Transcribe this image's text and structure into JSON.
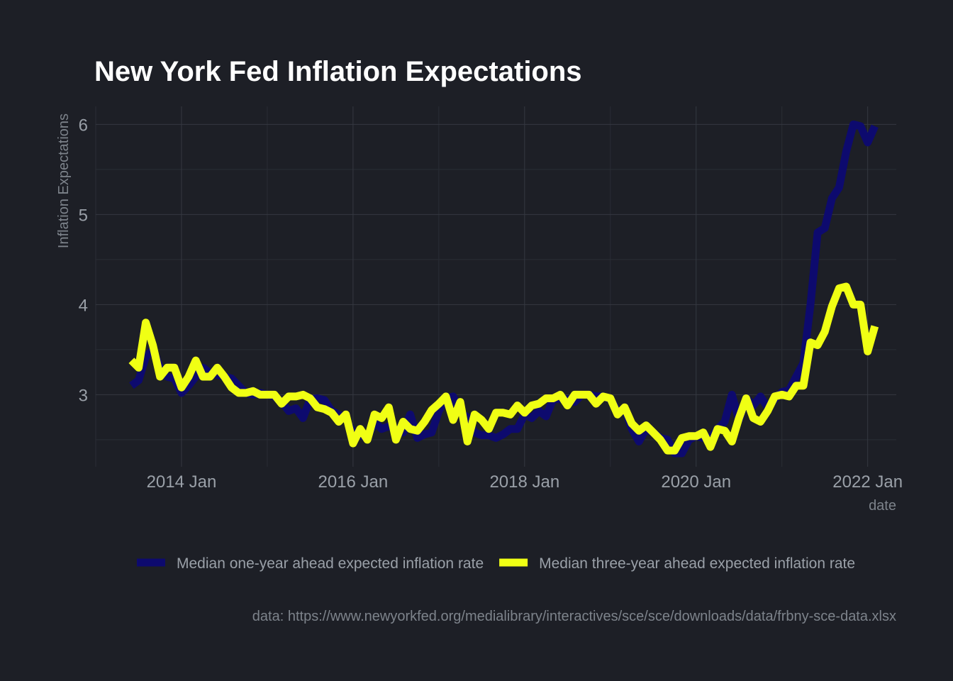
{
  "chart_data": {
    "type": "line",
    "title": "New York Fed Inflation Expectations",
    "xlabel": "date",
    "ylabel": "Inflation Expectations",
    "caption": "data: https://www.newyorkfed.org/medialibrary/interactives/sce/sce/downloads/data/frbny-sce-data.xlsx",
    "x_range": [
      "2013-01",
      "2022-05"
    ],
    "ylim": [
      2.2,
      6.2
    ],
    "x_ticks": [
      {
        "date": "2014-01",
        "label": "2014 Jan"
      },
      {
        "date": "2016-01",
        "label": "2016 Jan"
      },
      {
        "date": "2018-01",
        "label": "2018 Jan"
      },
      {
        "date": "2020-01",
        "label": "2020 Jan"
      },
      {
        "date": "2022-01",
        "label": "2022 Jan"
      }
    ],
    "y_ticks": [
      3,
      4,
      5,
      6
    ],
    "grid": true,
    "legend_position": "bottom",
    "series": [
      {
        "name": "Median one-year ahead expected inflation rate",
        "color": "#0d0a6e",
        "points": [
          [
            "2013-06",
            3.1
          ],
          [
            "2013-07",
            3.16
          ],
          [
            "2013-08",
            3.42
          ],
          [
            "2013-09",
            3.5
          ],
          [
            "2013-10",
            3.3
          ],
          [
            "2013-11",
            3.2
          ],
          [
            "2013-12",
            3.18
          ],
          [
            "2014-01",
            3.02
          ],
          [
            "2014-02",
            3.1
          ],
          [
            "2014-03",
            3.2
          ],
          [
            "2014-04",
            3.3
          ],
          [
            "2014-05",
            3.24
          ],
          [
            "2014-06",
            3.22
          ],
          [
            "2014-07",
            3.2
          ],
          [
            "2014-08",
            3.18
          ],
          [
            "2014-09",
            3.1
          ],
          [
            "2014-10",
            3.02
          ],
          [
            "2014-11",
            3.0
          ],
          [
            "2014-12",
            3.02
          ],
          [
            "2015-01",
            3.0
          ],
          [
            "2015-02",
            2.98
          ],
          [
            "2015-03",
            2.92
          ],
          [
            "2015-04",
            2.82
          ],
          [
            "2015-05",
            2.85
          ],
          [
            "2015-06",
            2.74
          ],
          [
            "2015-07",
            2.95
          ],
          [
            "2015-08",
            2.96
          ],
          [
            "2015-09",
            2.94
          ],
          [
            "2015-10",
            2.82
          ],
          [
            "2015-11",
            2.78
          ],
          [
            "2015-12",
            2.73
          ],
          [
            "2016-01",
            2.58
          ],
          [
            "2016-02",
            2.55
          ],
          [
            "2016-03",
            2.52
          ],
          [
            "2016-04",
            2.7
          ],
          [
            "2016-05",
            2.62
          ],
          [
            "2016-06",
            2.65
          ],
          [
            "2016-07",
            2.62
          ],
          [
            "2016-08",
            2.58
          ],
          [
            "2016-09",
            2.78
          ],
          [
            "2016-10",
            2.52
          ],
          [
            "2016-11",
            2.56
          ],
          [
            "2016-12",
            2.58
          ],
          [
            "2017-01",
            2.82
          ],
          [
            "2017-02",
            2.95
          ],
          [
            "2017-03",
            2.98
          ],
          [
            "2017-04",
            2.8
          ],
          [
            "2017-05",
            2.75
          ],
          [
            "2017-06",
            2.58
          ],
          [
            "2017-07",
            2.55
          ],
          [
            "2017-08",
            2.55
          ],
          [
            "2017-09",
            2.52
          ],
          [
            "2017-10",
            2.56
          ],
          [
            "2017-11",
            2.62
          ],
          [
            "2017-12",
            2.62
          ],
          [
            "2018-01",
            2.78
          ],
          [
            "2018-02",
            2.74
          ],
          [
            "2018-03",
            2.82
          ],
          [
            "2018-04",
            2.76
          ],
          [
            "2018-05",
            2.95
          ],
          [
            "2018-06",
            2.95
          ],
          [
            "2018-07",
            2.95
          ],
          [
            "2018-08",
            2.92
          ],
          [
            "2018-09",
            3.0
          ],
          [
            "2018-10",
            3.0
          ],
          [
            "2018-11",
            2.98
          ],
          [
            "2018-12",
            2.98
          ],
          [
            "2019-01",
            2.95
          ],
          [
            "2019-02",
            2.82
          ],
          [
            "2019-03",
            2.85
          ],
          [
            "2019-04",
            2.62
          ],
          [
            "2019-05",
            2.48
          ],
          [
            "2019-06",
            2.62
          ],
          [
            "2019-07",
            2.58
          ],
          [
            "2019-08",
            2.52
          ],
          [
            "2019-09",
            2.5
          ],
          [
            "2019-10",
            2.35
          ],
          [
            "2019-11",
            2.35
          ],
          [
            "2019-12",
            2.5
          ],
          [
            "2020-01",
            2.54
          ],
          [
            "2020-02",
            2.52
          ],
          [
            "2020-03",
            2.52
          ],
          [
            "2020-04",
            2.62
          ],
          [
            "2020-05",
            2.7
          ],
          [
            "2020-06",
            3.0
          ],
          [
            "2020-07",
            2.72
          ],
          [
            "2020-08",
            2.96
          ],
          [
            "2020-09",
            2.88
          ],
          [
            "2020-10",
            2.98
          ],
          [
            "2020-11",
            2.86
          ],
          [
            "2020-12",
            2.95
          ],
          [
            "2021-01",
            3.03
          ],
          [
            "2021-02",
            3.05
          ],
          [
            "2021-03",
            3.2
          ],
          [
            "2021-04",
            3.35
          ],
          [
            "2021-05",
            4.0
          ],
          [
            "2021-06",
            4.8
          ],
          [
            "2021-07",
            4.85
          ],
          [
            "2021-08",
            5.18
          ],
          [
            "2021-09",
            5.3
          ],
          [
            "2021-10",
            5.7
          ],
          [
            "2021-11",
            6.0
          ],
          [
            "2021-12",
            5.98
          ],
          [
            "2022-01",
            5.8
          ],
          [
            "2022-02",
            5.98
          ]
        ]
      },
      {
        "name": "Median three-year ahead expected inflation rate",
        "color": "#f0ff14",
        "points": [
          [
            "2013-06",
            3.38
          ],
          [
            "2013-07",
            3.3
          ],
          [
            "2013-08",
            3.8
          ],
          [
            "2013-09",
            3.55
          ],
          [
            "2013-10",
            3.2
          ],
          [
            "2013-11",
            3.3
          ],
          [
            "2013-12",
            3.3
          ],
          [
            "2014-01",
            3.08
          ],
          [
            "2014-02",
            3.2
          ],
          [
            "2014-03",
            3.38
          ],
          [
            "2014-04",
            3.2
          ],
          [
            "2014-05",
            3.2
          ],
          [
            "2014-06",
            3.3
          ],
          [
            "2014-07",
            3.2
          ],
          [
            "2014-08",
            3.08
          ],
          [
            "2014-09",
            3.02
          ],
          [
            "2014-10",
            3.02
          ],
          [
            "2014-11",
            3.04
          ],
          [
            "2014-12",
            3.0
          ],
          [
            "2015-01",
            3.0
          ],
          [
            "2015-02",
            3.0
          ],
          [
            "2015-03",
            2.9
          ],
          [
            "2015-04",
            2.98
          ],
          [
            "2015-05",
            2.98
          ],
          [
            "2015-06",
            3.0
          ],
          [
            "2015-07",
            2.96
          ],
          [
            "2015-08",
            2.86
          ],
          [
            "2015-09",
            2.84
          ],
          [
            "2015-10",
            2.8
          ],
          [
            "2015-11",
            2.7
          ],
          [
            "2015-12",
            2.78
          ],
          [
            "2016-01",
            2.46
          ],
          [
            "2016-02",
            2.62
          ],
          [
            "2016-03",
            2.5
          ],
          [
            "2016-04",
            2.78
          ],
          [
            "2016-05",
            2.74
          ],
          [
            "2016-06",
            2.86
          ],
          [
            "2016-07",
            2.5
          ],
          [
            "2016-08",
            2.7
          ],
          [
            "2016-09",
            2.62
          ],
          [
            "2016-10",
            2.6
          ],
          [
            "2016-11",
            2.7
          ],
          [
            "2016-12",
            2.83
          ],
          [
            "2017-01",
            2.9
          ],
          [
            "2017-02",
            2.98
          ],
          [
            "2017-03",
            2.72
          ],
          [
            "2017-04",
            2.92
          ],
          [
            "2017-05",
            2.48
          ],
          [
            "2017-06",
            2.78
          ],
          [
            "2017-07",
            2.72
          ],
          [
            "2017-08",
            2.62
          ],
          [
            "2017-09",
            2.8
          ],
          [
            "2017-10",
            2.8
          ],
          [
            "2017-11",
            2.78
          ],
          [
            "2017-12",
            2.88
          ],
          [
            "2018-01",
            2.8
          ],
          [
            "2018-02",
            2.88
          ],
          [
            "2018-03",
            2.9
          ],
          [
            "2018-04",
            2.96
          ],
          [
            "2018-05",
            2.96
          ],
          [
            "2018-06",
            3.0
          ],
          [
            "2018-07",
            2.88
          ],
          [
            "2018-08",
            3.0
          ],
          [
            "2018-09",
            3.0
          ],
          [
            "2018-10",
            3.0
          ],
          [
            "2018-11",
            2.9
          ],
          [
            "2018-12",
            2.98
          ],
          [
            "2019-01",
            2.96
          ],
          [
            "2019-02",
            2.78
          ],
          [
            "2019-03",
            2.86
          ],
          [
            "2019-04",
            2.68
          ],
          [
            "2019-05",
            2.6
          ],
          [
            "2019-06",
            2.66
          ],
          [
            "2019-07",
            2.58
          ],
          [
            "2019-08",
            2.5
          ],
          [
            "2019-09",
            2.38
          ],
          [
            "2019-10",
            2.38
          ],
          [
            "2019-11",
            2.52
          ],
          [
            "2019-12",
            2.54
          ],
          [
            "2020-01",
            2.54
          ],
          [
            "2020-02",
            2.58
          ],
          [
            "2020-03",
            2.42
          ],
          [
            "2020-04",
            2.62
          ],
          [
            "2020-05",
            2.6
          ],
          [
            "2020-06",
            2.48
          ],
          [
            "2020-07",
            2.74
          ],
          [
            "2020-08",
            2.96
          ],
          [
            "2020-09",
            2.74
          ],
          [
            "2020-10",
            2.7
          ],
          [
            "2020-11",
            2.82
          ],
          [
            "2020-12",
            2.98
          ],
          [
            "2021-01",
            3.0
          ],
          [
            "2021-02",
            2.98
          ],
          [
            "2021-03",
            3.1
          ],
          [
            "2021-04",
            3.1
          ],
          [
            "2021-05",
            3.58
          ],
          [
            "2021-06",
            3.55
          ],
          [
            "2021-07",
            3.7
          ],
          [
            "2021-08",
            3.98
          ],
          [
            "2021-09",
            4.18
          ],
          [
            "2021-10",
            4.2
          ],
          [
            "2021-11",
            4.0
          ],
          [
            "2021-12",
            4.0
          ],
          [
            "2022-01",
            3.48
          ],
          [
            "2022-02",
            3.76
          ]
        ]
      }
    ]
  }
}
